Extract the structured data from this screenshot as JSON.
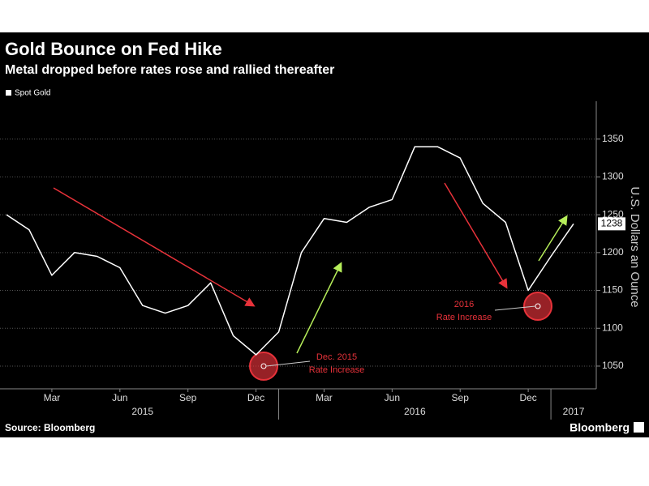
{
  "chart_data": {
    "type": "line",
    "title": "Gold Bounce on Fed Hike",
    "subtitle": "Metal dropped before rates rose and rallied thereafter",
    "y_axis_label": "U.S. Dollars an Ounce",
    "source": "Source: Bloomberg",
    "brand": "Bloomberg",
    "x": [
      "2015-01",
      "2015-02",
      "2015-03",
      "2015-04",
      "2015-05",
      "2015-06",
      "2015-07",
      "2015-08",
      "2015-09",
      "2015-10",
      "2015-11",
      "2015-12",
      "2016-01",
      "2016-02",
      "2016-03",
      "2016-04",
      "2016-05",
      "2016-06",
      "2016-07",
      "2016-08",
      "2016-09",
      "2016-10",
      "2016-11",
      "2016-12",
      "2017-01",
      "2017-02"
    ],
    "series": [
      {
        "name": "Spot Gold",
        "color": "#ffffff",
        "values": [
          1250,
          1230,
          1170,
          1200,
          1195,
          1180,
          1130,
          1120,
          1130,
          1160,
          1090,
          1065,
          1095,
          1200,
          1245,
          1240,
          1260,
          1270,
          1340,
          1340,
          1325,
          1265,
          1240,
          1150,
          1195,
          1238
        ]
      }
    ],
    "xlim": [
      "2015-01",
      "2017-03"
    ],
    "xticks": [
      {
        "value": "2015-03",
        "label": "Mar"
      },
      {
        "value": "2015-06",
        "label": "Jun"
      },
      {
        "value": "2015-09",
        "label": "Sep"
      },
      {
        "value": "2015-12",
        "label": "Dec"
      },
      {
        "value": "2016-03",
        "label": "Mar"
      },
      {
        "value": "2016-06",
        "label": "Jun"
      },
      {
        "value": "2016-09",
        "label": "Sep"
      },
      {
        "value": "2016-12",
        "label": "Dec"
      }
    ],
    "year_labels": [
      {
        "value": "2015-07",
        "label": "2015"
      },
      {
        "value": "2016-07",
        "label": "2016"
      },
      {
        "value": "2017-02",
        "label": "2017"
      }
    ],
    "ylim": [
      1020,
      1400
    ],
    "yticks": [
      1050,
      1100,
      1150,
      1200,
      1250,
      1300,
      1350
    ],
    "grid": true,
    "annotations": [
      {
        "line1": "Dec. 2015",
        "line2": "Rate Increase"
      },
      {
        "line1": "2016",
        "line2": "Rate Increase"
      }
    ]
  }
}
